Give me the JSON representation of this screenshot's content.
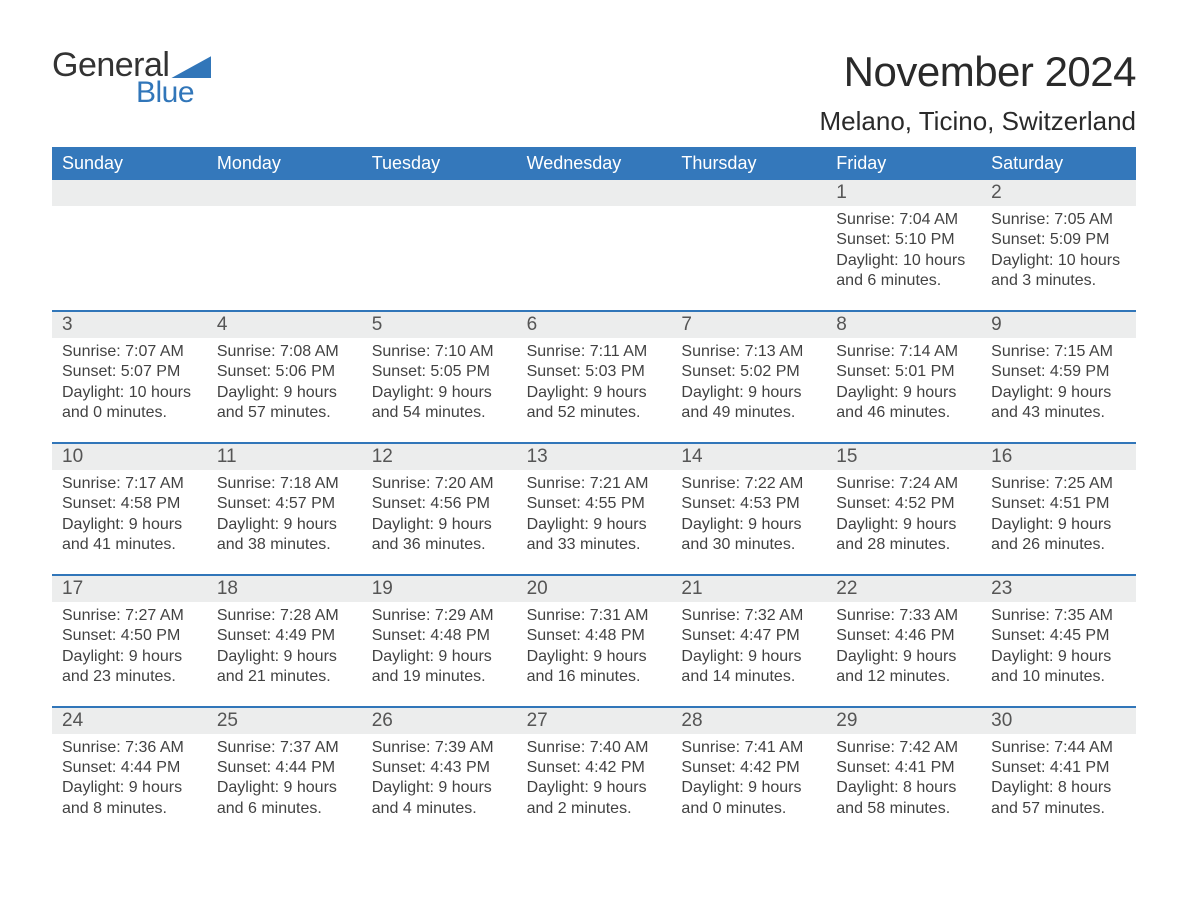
{
  "styling": {
    "accent_color": "#3176b9",
    "header_bg": "#3478bb",
    "daynum_bg": "#eceded",
    "page_bg": "#ffffff",
    "text_color": "#2f2f2f",
    "month_title_fontsize": 42,
    "location_fontsize": 26,
    "day_header_fontsize": 18,
    "daynum_fontsize": 19,
    "info_fontsize": 16,
    "font_family": "Helvetica Neue"
  },
  "logo": {
    "line1": "General",
    "line2": "Blue"
  },
  "title": "November 2024",
  "location": "Melano, Ticino, Switzerland",
  "day_headers": [
    "Sunday",
    "Monday",
    "Tuesday",
    "Wednesday",
    "Thursday",
    "Friday",
    "Saturday"
  ],
  "weeks": [
    [
      null,
      null,
      null,
      null,
      null,
      {
        "n": "1",
        "sunrise": "Sunrise: 7:04 AM",
        "sunset": "Sunset: 5:10 PM",
        "daylight": "Daylight: 10 hours and 6 minutes."
      },
      {
        "n": "2",
        "sunrise": "Sunrise: 7:05 AM",
        "sunset": "Sunset: 5:09 PM",
        "daylight": "Daylight: 10 hours and 3 minutes."
      }
    ],
    [
      {
        "n": "3",
        "sunrise": "Sunrise: 7:07 AM",
        "sunset": "Sunset: 5:07 PM",
        "daylight": "Daylight: 10 hours and 0 minutes."
      },
      {
        "n": "4",
        "sunrise": "Sunrise: 7:08 AM",
        "sunset": "Sunset: 5:06 PM",
        "daylight": "Daylight: 9 hours and 57 minutes."
      },
      {
        "n": "5",
        "sunrise": "Sunrise: 7:10 AM",
        "sunset": "Sunset: 5:05 PM",
        "daylight": "Daylight: 9 hours and 54 minutes."
      },
      {
        "n": "6",
        "sunrise": "Sunrise: 7:11 AM",
        "sunset": "Sunset: 5:03 PM",
        "daylight": "Daylight: 9 hours and 52 minutes."
      },
      {
        "n": "7",
        "sunrise": "Sunrise: 7:13 AM",
        "sunset": "Sunset: 5:02 PM",
        "daylight": "Daylight: 9 hours and 49 minutes."
      },
      {
        "n": "8",
        "sunrise": "Sunrise: 7:14 AM",
        "sunset": "Sunset: 5:01 PM",
        "daylight": "Daylight: 9 hours and 46 minutes."
      },
      {
        "n": "9",
        "sunrise": "Sunrise: 7:15 AM",
        "sunset": "Sunset: 4:59 PM",
        "daylight": "Daylight: 9 hours and 43 minutes."
      }
    ],
    [
      {
        "n": "10",
        "sunrise": "Sunrise: 7:17 AM",
        "sunset": "Sunset: 4:58 PM",
        "daylight": "Daylight: 9 hours and 41 minutes."
      },
      {
        "n": "11",
        "sunrise": "Sunrise: 7:18 AM",
        "sunset": "Sunset: 4:57 PM",
        "daylight": "Daylight: 9 hours and 38 minutes."
      },
      {
        "n": "12",
        "sunrise": "Sunrise: 7:20 AM",
        "sunset": "Sunset: 4:56 PM",
        "daylight": "Daylight: 9 hours and 36 minutes."
      },
      {
        "n": "13",
        "sunrise": "Sunrise: 7:21 AM",
        "sunset": "Sunset: 4:55 PM",
        "daylight": "Daylight: 9 hours and 33 minutes."
      },
      {
        "n": "14",
        "sunrise": "Sunrise: 7:22 AM",
        "sunset": "Sunset: 4:53 PM",
        "daylight": "Daylight: 9 hours and 30 minutes."
      },
      {
        "n": "15",
        "sunrise": "Sunrise: 7:24 AM",
        "sunset": "Sunset: 4:52 PM",
        "daylight": "Daylight: 9 hours and 28 minutes."
      },
      {
        "n": "16",
        "sunrise": "Sunrise: 7:25 AM",
        "sunset": "Sunset: 4:51 PM",
        "daylight": "Daylight: 9 hours and 26 minutes."
      }
    ],
    [
      {
        "n": "17",
        "sunrise": "Sunrise: 7:27 AM",
        "sunset": "Sunset: 4:50 PM",
        "daylight": "Daylight: 9 hours and 23 minutes."
      },
      {
        "n": "18",
        "sunrise": "Sunrise: 7:28 AM",
        "sunset": "Sunset: 4:49 PM",
        "daylight": "Daylight: 9 hours and 21 minutes."
      },
      {
        "n": "19",
        "sunrise": "Sunrise: 7:29 AM",
        "sunset": "Sunset: 4:48 PM",
        "daylight": "Daylight: 9 hours and 19 minutes."
      },
      {
        "n": "20",
        "sunrise": "Sunrise: 7:31 AM",
        "sunset": "Sunset: 4:48 PM",
        "daylight": "Daylight: 9 hours and 16 minutes."
      },
      {
        "n": "21",
        "sunrise": "Sunrise: 7:32 AM",
        "sunset": "Sunset: 4:47 PM",
        "daylight": "Daylight: 9 hours and 14 minutes."
      },
      {
        "n": "22",
        "sunrise": "Sunrise: 7:33 AM",
        "sunset": "Sunset: 4:46 PM",
        "daylight": "Daylight: 9 hours and 12 minutes."
      },
      {
        "n": "23",
        "sunrise": "Sunrise: 7:35 AM",
        "sunset": "Sunset: 4:45 PM",
        "daylight": "Daylight: 9 hours and 10 minutes."
      }
    ],
    [
      {
        "n": "24",
        "sunrise": "Sunrise: 7:36 AM",
        "sunset": "Sunset: 4:44 PM",
        "daylight": "Daylight: 9 hours and 8 minutes."
      },
      {
        "n": "25",
        "sunrise": "Sunrise: 7:37 AM",
        "sunset": "Sunset: 4:44 PM",
        "daylight": "Daylight: 9 hours and 6 minutes."
      },
      {
        "n": "26",
        "sunrise": "Sunrise: 7:39 AM",
        "sunset": "Sunset: 4:43 PM",
        "daylight": "Daylight: 9 hours and 4 minutes."
      },
      {
        "n": "27",
        "sunrise": "Sunrise: 7:40 AM",
        "sunset": "Sunset: 4:42 PM",
        "daylight": "Daylight: 9 hours and 2 minutes."
      },
      {
        "n": "28",
        "sunrise": "Sunrise: 7:41 AM",
        "sunset": "Sunset: 4:42 PM",
        "daylight": "Daylight: 9 hours and 0 minutes."
      },
      {
        "n": "29",
        "sunrise": "Sunrise: 7:42 AM",
        "sunset": "Sunset: 4:41 PM",
        "daylight": "Daylight: 8 hours and 58 minutes."
      },
      {
        "n": "30",
        "sunrise": "Sunrise: 7:44 AM",
        "sunset": "Sunset: 4:41 PM",
        "daylight": "Daylight: 8 hours and 57 minutes."
      }
    ]
  ]
}
